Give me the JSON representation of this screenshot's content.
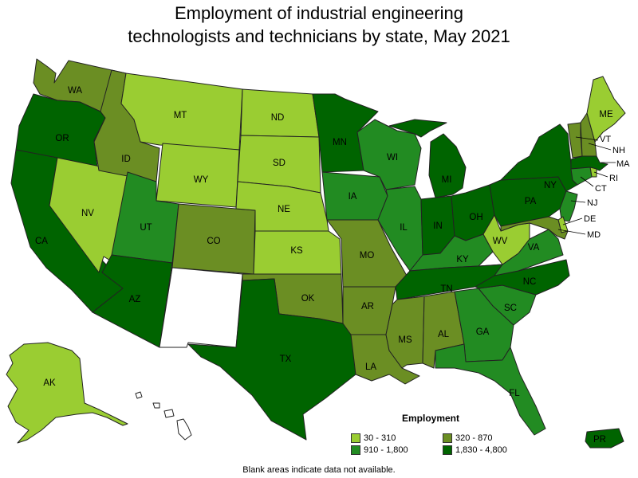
{
  "title_line1": "Employment of industrial engineering",
  "title_line2": "technologists and technicians by state, May 2021",
  "colors": {
    "c1": "#9ACD32",
    "c2": "#6B8E23",
    "c3": "#228B22",
    "c4": "#006400",
    "na": "#FFFFFF"
  },
  "legend": {
    "title": "Employment",
    "items": [
      {
        "label": "30 - 310",
        "class": "c1"
      },
      {
        "label": "320 - 870",
        "class": "c2"
      },
      {
        "label": "910 - 1,800",
        "class": "c3"
      },
      {
        "label": "1,830 - 4,800",
        "class": "c4"
      }
    ]
  },
  "footnote": "Blank areas indicate data not available.",
  "states": {
    "WA": {
      "label": "WA",
      "class": "c2"
    },
    "OR": {
      "label": "OR",
      "class": "c4"
    },
    "CA": {
      "label": "CA",
      "class": "c4"
    },
    "NV": {
      "label": "NV",
      "class": "c1"
    },
    "ID": {
      "label": "ID",
      "class": "c2"
    },
    "MT": {
      "label": "MT",
      "class": "c1"
    },
    "WY": {
      "label": "WY",
      "class": "c1"
    },
    "UT": {
      "label": "UT",
      "class": "c3"
    },
    "AZ": {
      "label": "AZ",
      "class": "c4"
    },
    "CO": {
      "label": "CO",
      "class": "c2"
    },
    "NM": {
      "label": "",
      "class": "na"
    },
    "ND": {
      "label": "ND",
      "class": "c1"
    },
    "SD": {
      "label": "SD",
      "class": "c1"
    },
    "NE": {
      "label": "NE",
      "class": "c1"
    },
    "KS": {
      "label": "KS",
      "class": "c1"
    },
    "OK": {
      "label": "OK",
      "class": "c2"
    },
    "TX": {
      "label": "TX",
      "class": "c4"
    },
    "MN": {
      "label": "MN",
      "class": "c4"
    },
    "IA": {
      "label": "IA",
      "class": "c3"
    },
    "MO": {
      "label": "MO",
      "class": "c2"
    },
    "AR": {
      "label": "AR",
      "class": "c2"
    },
    "LA": {
      "label": "LA",
      "class": "c2"
    },
    "WI": {
      "label": "WI",
      "class": "c3"
    },
    "IL": {
      "label": "IL",
      "class": "c3"
    },
    "MI": {
      "label": "MI",
      "class": "c4"
    },
    "IN": {
      "label": "IN",
      "class": "c4"
    },
    "OH": {
      "label": "OH",
      "class": "c4"
    },
    "KY": {
      "label": "KY",
      "class": "c3"
    },
    "TN": {
      "label": "TN",
      "class": "c4"
    },
    "MS": {
      "label": "MS",
      "class": "c2"
    },
    "AL": {
      "label": "AL",
      "class": "c2"
    },
    "GA": {
      "label": "GA",
      "class": "c3"
    },
    "FL": {
      "label": "FL",
      "class": "c3"
    },
    "SC": {
      "label": "SC",
      "class": "c3"
    },
    "NC": {
      "label": "NC",
      "class": "c4"
    },
    "VA": {
      "label": "VA",
      "class": "c3"
    },
    "WV": {
      "label": "WV",
      "class": "c1"
    },
    "PA": {
      "label": "PA",
      "class": "c4"
    },
    "NY": {
      "label": "NY",
      "class": "c4"
    },
    "VT": {
      "label": "VT",
      "class": "c2"
    },
    "NH": {
      "label": "NH",
      "class": "c2"
    },
    "ME": {
      "label": "ME",
      "class": "c1"
    },
    "MA": {
      "label": "MA",
      "class": "c4"
    },
    "RI": {
      "label": "RI",
      "class": "c1"
    },
    "CT": {
      "label": "CT",
      "class": "c3"
    },
    "NJ": {
      "label": "NJ",
      "class": "c3"
    },
    "DE": {
      "label": "DE",
      "class": "c1"
    },
    "MD": {
      "label": "MD",
      "class": "c2"
    },
    "AK": {
      "label": "AK",
      "class": "c1"
    },
    "HI": {
      "label": "",
      "class": "na"
    },
    "PR": {
      "label": "PR",
      "class": "c4"
    }
  }
}
